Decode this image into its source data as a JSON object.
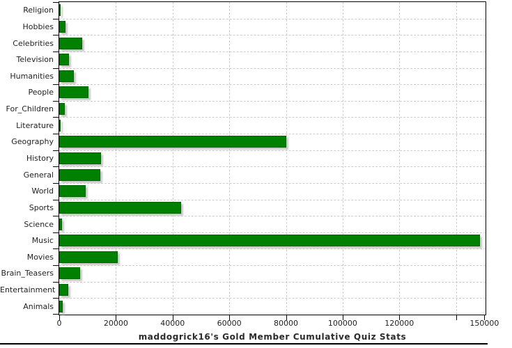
{
  "title": "maddogrick16's Gold Member Cumulative Quiz Stats",
  "chart_data": {
    "type": "bar",
    "orientation": "horizontal",
    "title": "maddogrick16's Gold Member Cumulative Quiz Stats",
    "title_position": "bottom",
    "xlabel": "",
    "ylabel": "",
    "categories": [
      "Religion",
      "Hobbies",
      "Celebrities",
      "Television",
      "Humanities",
      "People",
      "For_Children",
      "Literature",
      "Geography",
      "History",
      "General",
      "World",
      "Sports",
      "Science",
      "Music",
      "Movies",
      "Brain_Teasers",
      "Entertainment",
      "Animals"
    ],
    "values": [
      600,
      2100,
      8000,
      3400,
      5100,
      10300,
      1900,
      500,
      80000,
      14800,
      14500,
      9300,
      43000,
      1100,
      148500,
      20700,
      7400,
      3300,
      1300
    ],
    "xlim": [
      0,
      150400
    ],
    "xticks": [
      {
        "value": 0,
        "label": "0"
      },
      {
        "value": 20000,
        "label": "20000"
      },
      {
        "value": 40000,
        "label": "40000"
      },
      {
        "value": 60000,
        "label": "60000"
      },
      {
        "value": 80000,
        "label": "80000"
      },
      {
        "value": 100000,
        "label": "100000"
      },
      {
        "value": 120000,
        "label": "120000"
      },
      {
        "value": 140000,
        "label": ""
      },
      {
        "value": 150000,
        "label": "150000"
      }
    ],
    "grid": "dashed",
    "legend": "none",
    "colors": {
      "bar_fill": "#008000",
      "bar_outline": "#046404",
      "bar_shadow": "#c8c8c8",
      "gridline": "#cccccc",
      "axis": "#000000",
      "text": "#222222"
    }
  }
}
